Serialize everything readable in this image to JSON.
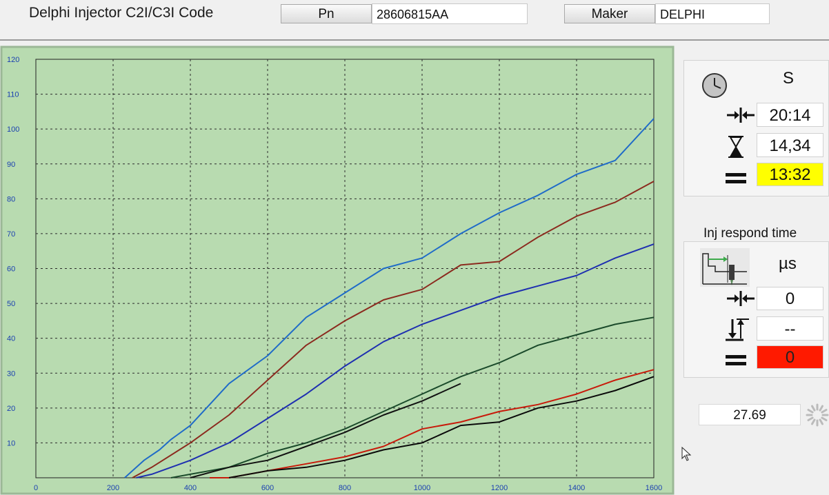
{
  "header": {
    "title": "Delphi Injector C2I/C3I Code",
    "pn_label": "Pn",
    "pn_value": "28606815AA",
    "maker_label": "Maker",
    "maker_value": "DELPHI"
  },
  "timer": {
    "icon": "clock-icon",
    "unit": "S",
    "interval_value": "20:14",
    "elapsed_value": "14,34",
    "result_value": "13:32",
    "result_color": "#ffff00"
  },
  "inj_respond": {
    "label": "Inj respond time",
    "unit": "µs",
    "interval_value": "0",
    "height_value": "--",
    "result_value": "0",
    "result_color": "#ff1a00"
  },
  "readout": {
    "value": "27.69"
  },
  "chart_data": {
    "type": "line",
    "x_ticks": [
      0,
      200,
      400,
      600,
      800,
      1000,
      1200,
      1400,
      1600
    ],
    "y_ticks": [
      10,
      20,
      30,
      40,
      50,
      60,
      70,
      80,
      90,
      100,
      110,
      120
    ],
    "xlim": [
      0,
      1600
    ],
    "ylim": [
      0,
      120
    ],
    "grid": true,
    "plot_bg": "#b8dbb0",
    "series": [
      {
        "color": "#1f6bc8",
        "x": [
          230,
          250,
          280,
          320,
          350,
          400,
          450,
          500,
          600,
          700,
          800,
          900,
          1000,
          1100,
          1200,
          1300,
          1400,
          1500,
          1600
        ],
        "y": [
          0,
          2,
          5,
          8,
          11,
          15,
          21,
          27,
          35,
          46,
          53,
          60,
          63,
          70,
          76,
          81,
          87,
          91,
          103
        ]
      },
      {
        "color": "#8b2a1e",
        "x": [
          250,
          300,
          400,
          500,
          600,
          700,
          800,
          900,
          1000,
          1100,
          1200,
          1300,
          1400,
          1500,
          1600
        ],
        "y": [
          0,
          3,
          10,
          18,
          28,
          38,
          45,
          51,
          54,
          61,
          62,
          69,
          75,
          79,
          85
        ]
      },
      {
        "color": "#1e2fb0",
        "x": [
          260,
          300,
          400,
          500,
          600,
          700,
          800,
          900,
          1000,
          1100,
          1200,
          1300,
          1400,
          1500,
          1600
        ],
        "y": [
          0,
          1,
          5,
          10,
          17,
          24,
          32,
          39,
          44,
          48,
          52,
          55,
          58,
          63,
          67
        ]
      },
      {
        "color": "#1a4a2a",
        "x": [
          350,
          400,
          500,
          600,
          700,
          800,
          900,
          1000,
          1100,
          1200,
          1300,
          1400,
          1500,
          1600
        ],
        "y": [
          0,
          1,
          3,
          7,
          10,
          14,
          19,
          24,
          29,
          33,
          38,
          41,
          44,
          46
        ]
      },
      {
        "color": "#111111",
        "x": [
          400,
          500,
          600,
          700,
          800,
          900,
          1000,
          1100
        ],
        "y": [
          0,
          3,
          5,
          9,
          13,
          18,
          22,
          27
        ]
      },
      {
        "color": "#c81a0a",
        "x": [
          450,
          500,
          600,
          700,
          800,
          900,
          1000,
          1100,
          1200,
          1300,
          1400,
          1500,
          1600
        ],
        "y": [
          0,
          0,
          2,
          4,
          6,
          9,
          14,
          16,
          19,
          21,
          24,
          28,
          31
        ]
      },
      {
        "color": "#0a0a0a",
        "x": [
          500,
          600,
          700,
          800,
          900,
          1000,
          1100,
          1200,
          1300,
          1400,
          1500,
          1600
        ],
        "y": [
          0,
          2,
          3,
          5,
          8,
          10,
          15,
          16,
          20,
          22,
          25,
          29
        ]
      }
    ]
  }
}
